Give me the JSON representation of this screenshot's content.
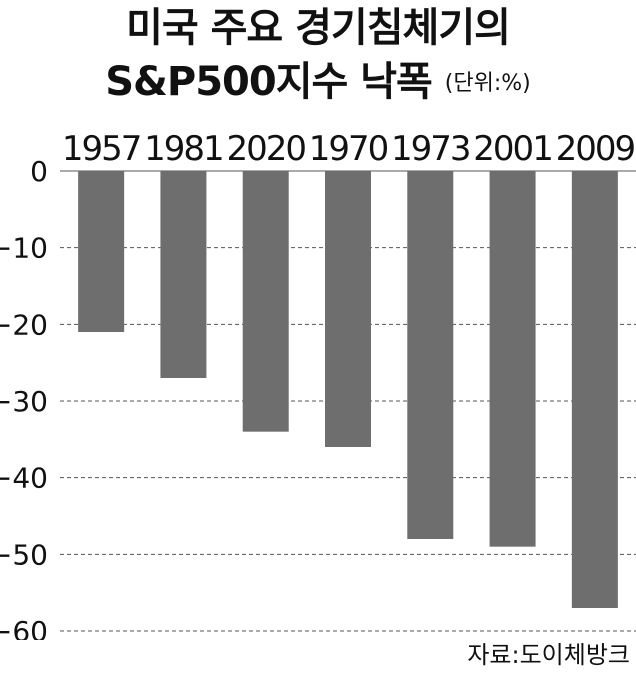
{
  "title_line1": "미국 주요 경기침체기의",
  "title_line2": "S&P500지수 낙폭",
  "unit": "(단위:%)",
  "source": "자료:도이체방크",
  "chart_data": {
    "type": "bar",
    "categories": [
      "1957",
      "1981",
      "2020",
      "1970",
      "1973",
      "2001",
      "2009"
    ],
    "values": [
      -21,
      -27,
      -34,
      -36,
      -48,
      -49,
      -57
    ],
    "ylim": [
      -60,
      0
    ],
    "yticks": [
      0,
      -10,
      -20,
      -30,
      -40,
      -50,
      -60
    ],
    "ytick_labels": [
      "0",
      "−10",
      "−20",
      "−30",
      "−40",
      "−50",
      "−60"
    ],
    "xaxis_position": "top",
    "grid": true,
    "bar_color": "#6e6e6e",
    "grid_color": "#555555"
  }
}
